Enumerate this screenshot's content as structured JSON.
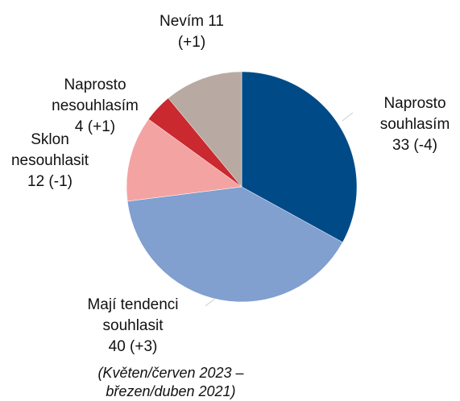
{
  "chart_data": {
    "type": "pie",
    "categories": [
      "Naprosto souhlasím",
      "Mají tendenci souhlasit",
      "Sklon nesouhlasit",
      "Naprosto nesouhlasím",
      "Nevím"
    ],
    "values": [
      33,
      40,
      12,
      4,
      11
    ],
    "changes": [
      "(-4)",
      "(+3)",
      "(-1)",
      "(+1)",
      "(+1)"
    ],
    "colors": [
      "#004b87",
      "#819fcf",
      "#f4a3a3",
      "#c9292f",
      "#b8aaa2"
    ],
    "note": "(Květen/červen 2023 – březen/duben 2021)"
  }
}
